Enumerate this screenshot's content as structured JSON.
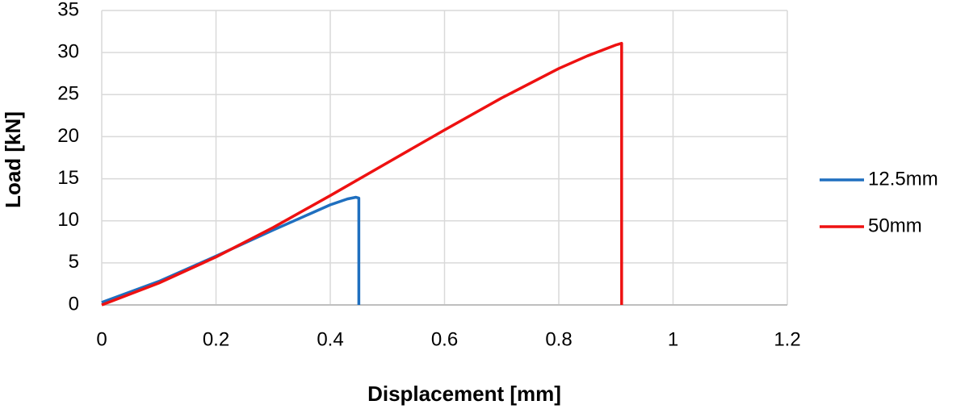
{
  "chart_data": {
    "type": "line",
    "x_label": "Displacement [mm]",
    "y_label": "Load [kN]",
    "xlim": [
      0,
      1.2
    ],
    "xticks": [
      0,
      0.2,
      0.4,
      0.6,
      0.8,
      1,
      1.2
    ],
    "ylim": [
      0,
      35
    ],
    "yticks": [
      0,
      5,
      10,
      15,
      20,
      25,
      30,
      35
    ],
    "grid": true,
    "legend": "right",
    "series": [
      {
        "name": "12.5mm",
        "color": "#1f6fbf",
        "x": [
          0,
          0.1,
          0.2,
          0.3,
          0.35,
          0.4,
          0.43,
          0.445,
          0.45,
          0.45
        ],
        "values": [
          0.3,
          2.8,
          5.8,
          8.9,
          10.4,
          11.9,
          12.6,
          12.8,
          12.7,
          0
        ]
      },
      {
        "name": "50mm",
        "color": "#ee1111",
        "x": [
          0,
          0.1,
          0.2,
          0.3,
          0.4,
          0.5,
          0.6,
          0.7,
          0.8,
          0.85,
          0.9,
          0.91,
          0.91
        ],
        "values": [
          0,
          2.6,
          5.7,
          9.2,
          13,
          16.9,
          20.8,
          24.6,
          28.1,
          29.6,
          30.9,
          31.1,
          0
        ]
      }
    ]
  }
}
